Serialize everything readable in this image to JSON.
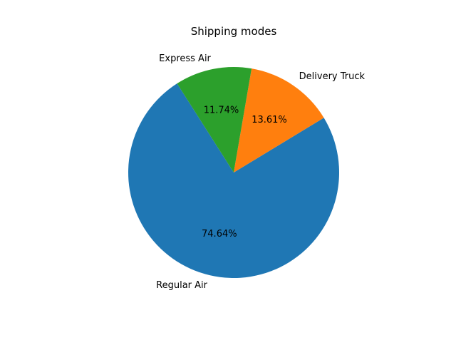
{
  "chart_data": {
    "type": "pie",
    "title": "Shipping modes",
    "slices": [
      {
        "label": "Regular Air",
        "value": 74.64,
        "pct_label": "74.64%",
        "color": "#1f77b4"
      },
      {
        "label": "Delivery Truck",
        "value": 13.61,
        "pct_label": "13.61%",
        "color": "#ff7f0e"
      },
      {
        "label": "Express Air",
        "value": 11.74,
        "pct_label": "11.74%",
        "color": "#2ca02c"
      }
    ]
  }
}
